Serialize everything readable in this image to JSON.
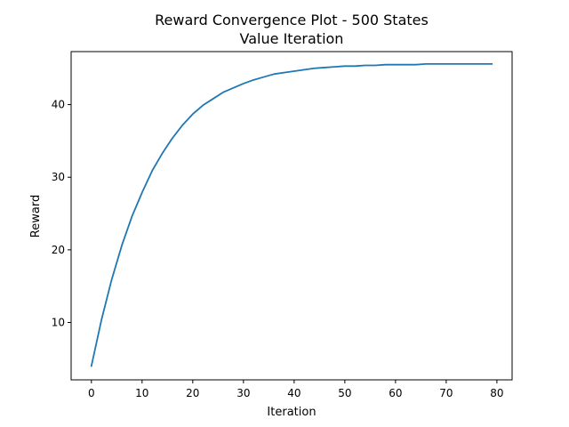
{
  "chart_data": {
    "type": "line",
    "title": "Reward Convergence Plot - 500 States",
    "subtitle": "Value Iteration",
    "xlabel": "Iteration",
    "ylabel": "Reward",
    "xlim": [
      -4,
      83
    ],
    "ylim": [
      2.1,
      47.3
    ],
    "xticks": [
      0,
      10,
      20,
      30,
      40,
      50,
      60,
      70,
      80
    ],
    "yticks": [
      10,
      20,
      30,
      40
    ],
    "grid": false,
    "series": [
      {
        "color": "#1f77b4",
        "x": [
          0,
          2,
          4,
          6,
          8,
          10,
          12,
          14,
          16,
          18,
          20,
          22,
          24,
          26,
          28,
          30,
          32,
          34,
          36,
          38,
          40,
          42,
          44,
          46,
          48,
          50,
          52,
          54,
          56,
          58,
          60,
          62,
          64,
          66,
          68,
          70,
          72,
          74,
          76,
          79
        ],
        "y": [
          4.0,
          10.4,
          15.9,
          20.6,
          24.6,
          27.9,
          30.9,
          33.3,
          35.4,
          37.2,
          38.7,
          39.9,
          40.8,
          41.7,
          42.3,
          42.9,
          43.4,
          43.8,
          44.2,
          44.4,
          44.6,
          44.8,
          45.0,
          45.1,
          45.2,
          45.3,
          45.3,
          45.4,
          45.4,
          45.5,
          45.5,
          45.5,
          45.5,
          45.6,
          45.6,
          45.6,
          45.6,
          45.6,
          45.6,
          45.6
        ]
      }
    ]
  }
}
